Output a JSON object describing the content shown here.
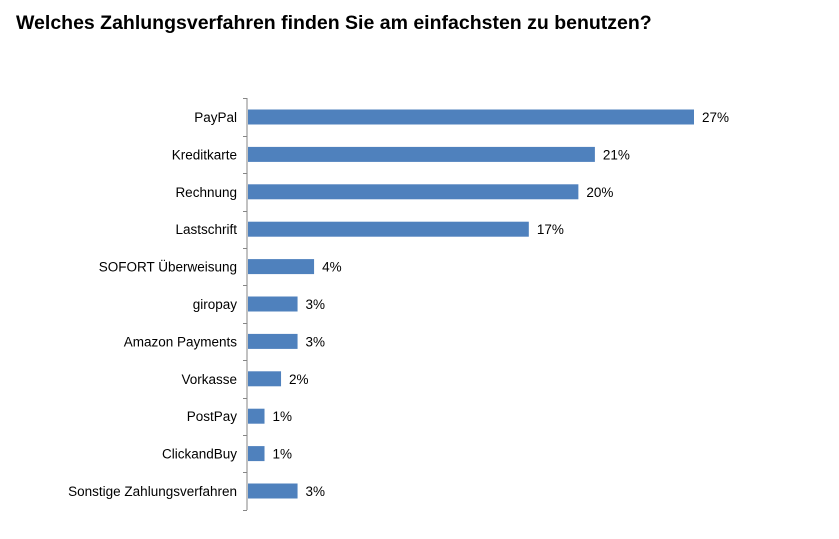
{
  "chart_data": {
    "type": "bar",
    "orientation": "horizontal",
    "title": "Welches Zahlungsverfahren finden Sie am einfachsten zu benutzen?",
    "categories": [
      "PayPal",
      "Kreditkarte",
      "Rechnung",
      "Lastschrift",
      "SOFORT Überweisung",
      "giropay",
      "Amazon Payments",
      "Vorkasse",
      "PostPay",
      "ClickandBuy",
      "Sonstige Zahlungsverfahren"
    ],
    "values": [
      27,
      21,
      20,
      17,
      4,
      3,
      3,
      2,
      1,
      1,
      3
    ],
    "value_labels": [
      "27%",
      "21%",
      "20%",
      "17%",
      "4%",
      "3%",
      "3%",
      "2%",
      "1%",
      "1%",
      "3%"
    ],
    "unit": "%",
    "bar_color": "#4f81bd",
    "grid": false,
    "legend": "none"
  }
}
